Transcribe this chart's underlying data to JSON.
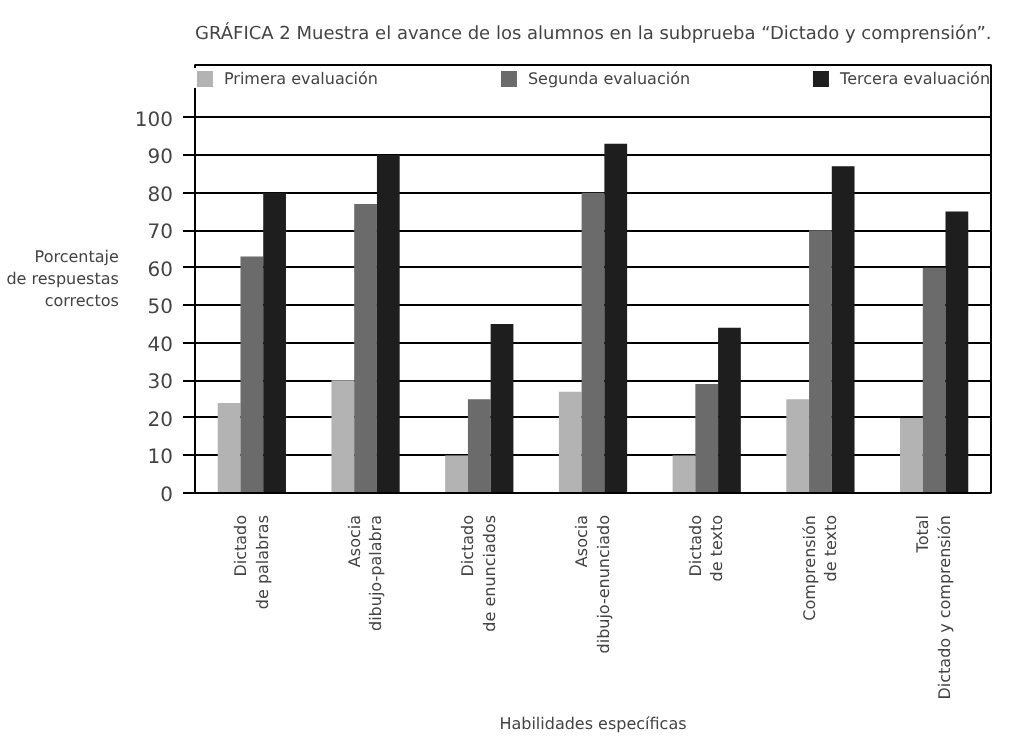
{
  "chart_data": {
    "type": "bar",
    "title": "GRÁFICA 2 Muestra el avance de los alumnos en la subprueba “Dictado y comprensión”.",
    "xlabel": "Habilidades específicas",
    "ylabel": "Porcentaje\nde respuestas\ncorrectos",
    "categories": [
      "Dictado\nde palabras",
      "Asocia\ndibujo-palabra",
      "Dictado\nde enunciados",
      "Asocia\ndibujo-enunciado",
      "Dictado\nde texto",
      "Comprensión\nde texto",
      "Total\nDictado y comprensión"
    ],
    "series": [
      {
        "name": "Primera evaluación",
        "color": "#b3b3b3",
        "values": [
          24,
          30,
          10,
          27,
          10,
          25,
          20
        ]
      },
      {
        "name": "Segunda evaluación",
        "color": "#6b6b6b",
        "values": [
          63,
          77,
          25,
          80,
          29,
          70,
          60
        ]
      },
      {
        "name": "Tercera evaluación",
        "color": "#1e1e1e",
        "values": [
          80,
          90,
          45,
          93,
          44,
          87,
          75
        ]
      }
    ],
    "ylim": [
      0,
      114
    ],
    "yticks": [
      0,
      10,
      20,
      30,
      40,
      50,
      60,
      70,
      80,
      90,
      100
    ],
    "grid": "y",
    "legend": "top"
  }
}
